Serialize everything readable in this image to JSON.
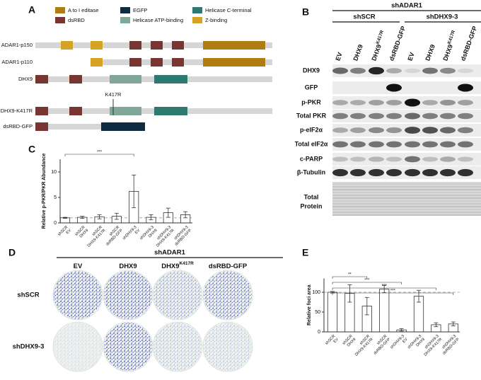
{
  "panel_labels": [
    "A",
    "B",
    "C",
    "D",
    "E"
  ],
  "panel_a": {
    "legend": [
      {
        "label": "A to I editase",
        "color": "#b07c12"
      },
      {
        "label": "EGFP",
        "color": "#0f2b3f"
      },
      {
        "label": "Helicase C-terminal",
        "color": "#2f7a70"
      },
      {
        "label": "dsRBD",
        "color": "#7a3431"
      },
      {
        "label": "Helicase ATP-binding",
        "color": "#80a797"
      },
      {
        "label": "Z-binding",
        "color": "#d6a224"
      }
    ],
    "proteins": [
      "ADAR1-p150",
      "ADAR1-p110",
      "DHX9",
      "DHX9-K417R",
      "dsRBD-GFP"
    ],
    "mutation_label": "K417R"
  },
  "panel_b": {
    "group": "shADAR1",
    "subgroups": [
      "shSCR",
      "shDHX9-3"
    ],
    "lanes": [
      {
        "text": "EV"
      },
      {
        "text": "DHX9"
      },
      {
        "text": "DHX9",
        "sup": "K417R"
      },
      {
        "text": "dsRBD-GFP"
      },
      {
        "text": "EV"
      },
      {
        "text": "DHX9"
      },
      {
        "text": "DHX9",
        "sup": "K417R"
      },
      {
        "text": "dsRBD-GFP"
      }
    ],
    "rows": [
      [
        "DHX9"
      ],
      [
        "GFP"
      ],
      [
        "p-PKR"
      ],
      [
        "Total PKR"
      ],
      [
        "p-eIF2α"
      ],
      [
        "Total eIF2α"
      ],
      [
        "c-PARP"
      ],
      [
        "β-Tubulin"
      ],
      [
        "Total",
        "Protein"
      ]
    ]
  },
  "panel_d": {
    "group": "shADAR1",
    "columns": [
      {
        "text": "EV"
      },
      {
        "text": "DHX9"
      },
      {
        "text": "DHX9",
        "sup": "K417R"
      },
      {
        "text": "dsRBD-GFP"
      }
    ],
    "rows": [
      "shSCR",
      "shDHX9-3"
    ]
  },
  "chart_data": [
    {
      "type": "bar",
      "y_label": "Relative p-PKR/PKR Abundance",
      "categories": [
        [
          "shSCR",
          "EV"
        ],
        [
          "shSCR",
          "DHX9"
        ],
        [
          "shSCR",
          "DHX9-K417R"
        ],
        [
          "shSCR",
          "dsRBD-GFP"
        ],
        [
          "shDHX9-3",
          "EV"
        ],
        [
          "shDHX9-3",
          "DHX9"
        ],
        [
          "shDHX9-3",
          "DHX9-K417R"
        ],
        [
          "shDHX9-3",
          "dsRBD-GFP"
        ]
      ],
      "values": [
        1.0,
        1.1,
        1.2,
        1.3,
        6.2,
        1.1,
        2.0,
        1.6
      ],
      "errors": [
        0.1,
        0.2,
        0.4,
        0.6,
        3.2,
        0.5,
        0.9,
        0.6
      ],
      "color": "#ffffff",
      "ylim": [
        0,
        12.5
      ],
      "yticks": [
        0,
        5,
        10
      ],
      "reference_line": 1,
      "significance": [
        "***"
      ]
    },
    {
      "type": "bar",
      "y_label": "Relative foci area",
      "categories": [
        [
          "shSCR",
          "EV"
        ],
        [
          "shSCR",
          "DHX9"
        ],
        [
          "shSCR",
          "DHX9-K417R"
        ],
        [
          "shSCR",
          "dsRBD-GFP"
        ],
        [
          "shDHX9-3",
          "EV"
        ],
        [
          "shDHX9-3",
          "DHX9"
        ],
        [
          "shDHX9-3",
          "DHX9-K417R"
        ],
        [
          "shDHX9-3",
          "dsRBD-GFP"
        ]
      ],
      "values": [
        100,
        97,
        65,
        108,
        5,
        90,
        18,
        20
      ],
      "errors": [
        2,
        22,
        22,
        9,
        3,
        15,
        5,
        5
      ],
      "color": "#ffffff",
      "ylim": [
        0,
        135
      ],
      "yticks": [
        0,
        50,
        100
      ],
      "reference_line": 100,
      "significance": [
        "**",
        "***",
        "***",
        "***"
      ]
    }
  ]
}
